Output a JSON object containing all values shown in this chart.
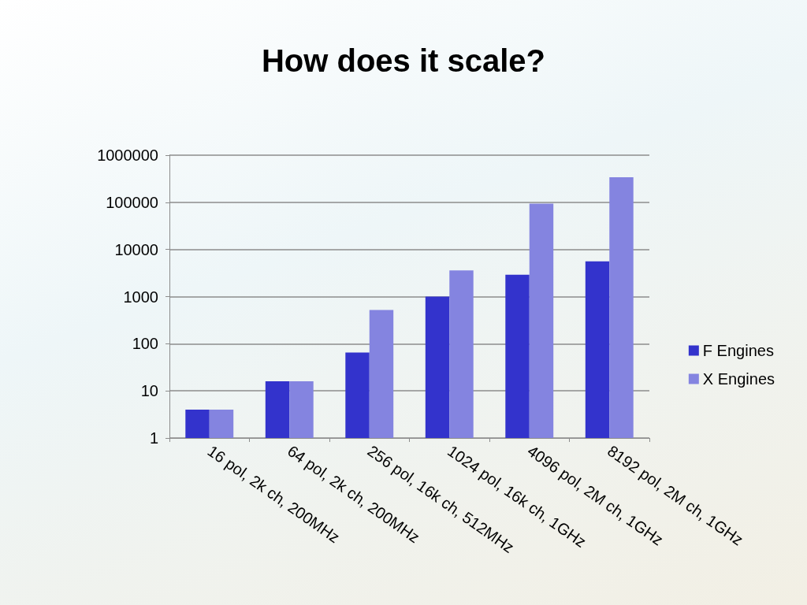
{
  "chart_data": {
    "type": "bar",
    "title": "How does it scale?",
    "categories": [
      "16 pol, 2k ch, 200MHz",
      "64 pol, 2k ch, 200MHz",
      "256 pol, 16k ch, 512MHz",
      "1024 pol, 16k ch, 1GHz",
      "4096 pol, 2M ch, 1GHz",
      "8192 pol, 2M ch, 1GHz"
    ],
    "series": [
      {
        "name": "F Engines",
        "color": "#3333cc",
        "values": [
          4,
          16,
          65,
          1000,
          2900,
          5600
        ]
      },
      {
        "name": "X Engines",
        "color": "#8484e0",
        "values": [
          4,
          16,
          520,
          3600,
          94000,
          340000
        ]
      }
    ],
    "log": "y",
    "ylim": [
      1,
      1000000
    ],
    "yticks": [
      1,
      10,
      100,
      1000,
      10000,
      100000,
      1000000
    ],
    "grid": "y",
    "legend": "right"
  }
}
